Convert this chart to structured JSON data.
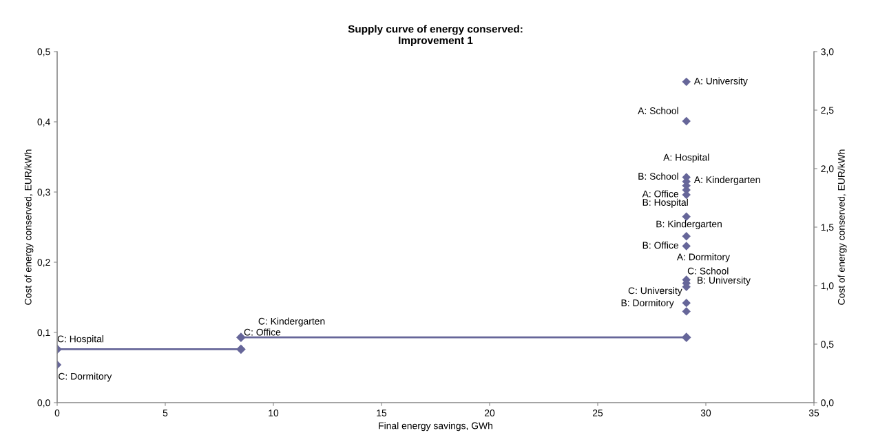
{
  "chart_data": {
    "type": "line",
    "title": "Supply curve of energy conserved:\nImprovement 1",
    "xlabel": "Final energy savings, GWh",
    "ylabel": "Cost of energy conserved, EUR/kWh",
    "y2label": "Cost of energy conserved, EUR/kWh",
    "series": [
      {
        "color": "#666699",
        "x": [
          0,
          8.5
        ],
        "values": [
          0.076,
          0.076
        ]
      },
      {
        "color": "#666699",
        "x": [
          8.5,
          29.1
        ],
        "values": [
          0.093,
          0.093
        ]
      },
      {
        "type": "scatter",
        "color": "#666699",
        "x": [
          29.1,
          29.1,
          29.1,
          29.1,
          29.1,
          29.1,
          29.1,
          29.1,
          29.1,
          29.1,
          29.1,
          29.1,
          29.1,
          29.1,
          29.1,
          0
        ],
        "values": [
          0.457,
          0.401,
          0.321,
          0.315,
          0.309,
          0.303,
          0.296,
          0.265,
          0.237,
          0.223,
          0.175,
          0.17,
          0.165,
          0.142,
          0.13,
          0.054
        ]
      }
    ],
    "marker": "diamond",
    "line_style": "solid",
    "grid": false,
    "legend": false,
    "xlim": [
      0,
      35
    ],
    "xticks": [
      0,
      5,
      10,
      15,
      20,
      25,
      30,
      35
    ],
    "ylim": [
      0,
      0.5
    ],
    "yticks": [
      {
        "value": 0,
        "label": "0,0"
      },
      {
        "value": 0.1,
        "label": "0,1"
      },
      {
        "value": 0.2,
        "label": "0,2"
      },
      {
        "value": 0.3,
        "label": "0,3"
      },
      {
        "value": 0.4,
        "label": "0,4"
      },
      {
        "value": 0.5,
        "label": "0,5"
      }
    ],
    "y2lim": [
      0,
      3
    ],
    "y2ticks": [
      {
        "value": 0,
        "label": "0,0"
      },
      {
        "value": 0.5,
        "label": "0,5"
      },
      {
        "value": 1,
        "label": "1,0"
      },
      {
        "value": 1.5,
        "label": "1,5"
      },
      {
        "value": 2,
        "label": "2,0"
      },
      {
        "value": 2.5,
        "label": "2,5"
      },
      {
        "value": 3,
        "label": "3,0"
      }
    ],
    "annotations": [
      {
        "text": "A: University",
        "x": 29.1,
        "y": 0.457
      },
      {
        "text": "A: School",
        "x": 29.1,
        "y": 0.401
      },
      {
        "text": "A: Hospital",
        "x": 29.1,
        "y": 0.321
      },
      {
        "text": "A: Kindergarten",
        "x": 29.1,
        "y": 0.315
      },
      {
        "text": "B: School",
        "x": 29.1,
        "y": 0.309
      },
      {
        "text": "A: Office",
        "x": 29.1,
        "y": 0.303
      },
      {
        "text": "B: Hospital",
        "x": 29.1,
        "y": 0.265
      },
      {
        "text": "B: Kindergarten",
        "x": 29.1,
        "y": 0.237
      },
      {
        "text": "B: Office",
        "x": 29.1,
        "y": 0.223
      },
      {
        "text": "A: Dormitory",
        "x": 29.1,
        "y": 0.175
      },
      {
        "text": "C: School",
        "x": 29.1,
        "y": 0.17
      },
      {
        "text": "B: University",
        "x": 29.1,
        "y": 0.165
      },
      {
        "text": "C: University",
        "x": 29.1,
        "y": 0.142
      },
      {
        "text": "B: Dormitory",
        "x": 29.1,
        "y": 0.13
      },
      {
        "text": "C: Kindergarten",
        "x": 8.5,
        "y": 0.093
      },
      {
        "text": "C: Hospital",
        "x": 0,
        "y": 0.076
      },
      {
        "text": "C: Office",
        "x": 8.5,
        "y": 0.076
      },
      {
        "text": "C: Dormitory",
        "x": 0,
        "y": 0.054
      }
    ]
  }
}
